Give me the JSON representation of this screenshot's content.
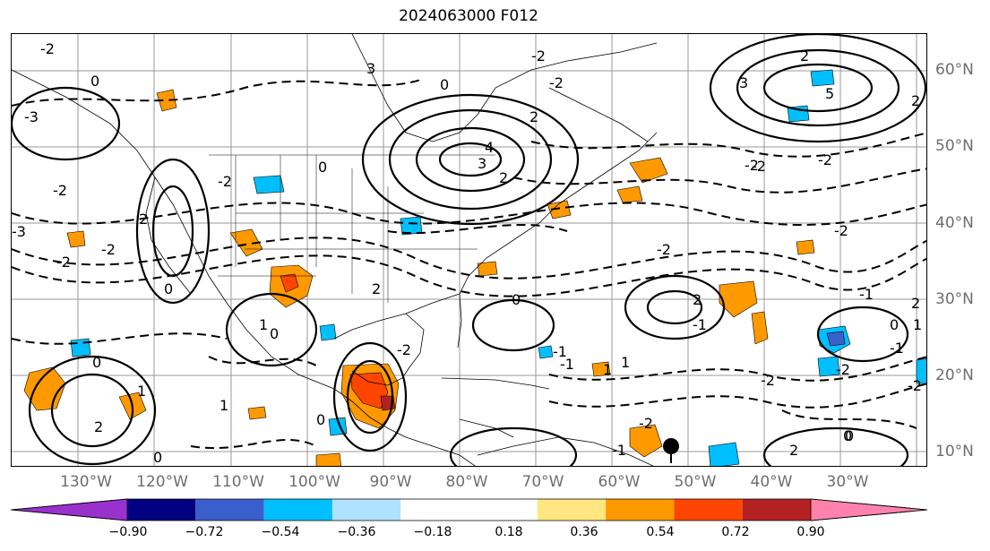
{
  "title": "2024063000 F012",
  "map": {
    "lat_labels": [
      "60°N",
      "50°N",
      "40°N",
      "30°N",
      "20°N",
      "10°N"
    ],
    "lon_labels": [
      "130°W",
      "120°W",
      "110°W",
      "100°W",
      "90°W",
      "80°W",
      "70°W",
      "60°W",
      "50°W",
      "40°W",
      "30°W"
    ],
    "contour_labels": [
      "-2",
      "-2",
      "0",
      "-3",
      "3",
      "3",
      "-2",
      "2",
      "0",
      "4",
      "5",
      "3",
      "-2",
      "2",
      "-2",
      "0",
      "-3",
      "2",
      "0",
      "1",
      "2",
      "2",
      "-2",
      "0",
      "1",
      "-1",
      "-1",
      "0",
      "-2",
      "2",
      "-2",
      "-2",
      "-2",
      "0",
      "-2",
      "0",
      "2",
      "2",
      "0",
      "-2",
      "1",
      "-1",
      "-1",
      "1",
      "-1",
      "0",
      "-2",
      "-1",
      "0",
      "-2",
      "1",
      "2",
      "-2",
      "-2",
      "1",
      "0",
      "2",
      "-2"
    ],
    "contour_style": {
      "positive": "solid",
      "negative": "dashed",
      "color": "#000000"
    }
  },
  "colorbar": {
    "colors": [
      "#9932cc",
      "#000080",
      "#3a5fcd",
      "#00bfff",
      "#b0e2ff",
      "#ffffff",
      "#ffffff",
      "#ffe680",
      "#ff9900",
      "#ff4500",
      "#b22222",
      "#ff82ab"
    ],
    "ticks": [
      "−0.90",
      "−0.72",
      "−0.54",
      "−0.36",
      "−0.18",
      "0.18",
      "0.36",
      "0.54",
      "0.72",
      "0.90"
    ]
  }
}
